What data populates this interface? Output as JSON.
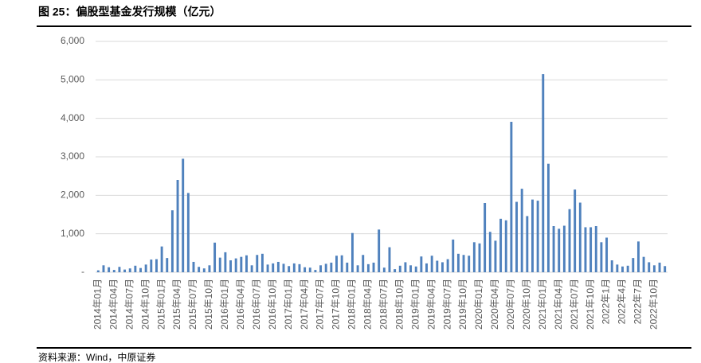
{
  "chart_data": {
    "type": "bar",
    "title": "图 25：偏股型基金发行规模（亿元）",
    "source": "资料来源：Wind，中原证券",
    "color": "#4f81bd",
    "categories": [
      "2014年01月",
      null,
      null,
      "2014年04月",
      null,
      null,
      "2014年07月",
      null,
      null,
      "2014年10月",
      null,
      null,
      "2015年01月",
      null,
      null,
      "2015年04月",
      null,
      null,
      "2015年07月",
      null,
      null,
      "2015年10月",
      null,
      null,
      "2016年01月",
      null,
      null,
      "2016年04月",
      null,
      null,
      "2016年07月",
      null,
      null,
      "2016年10月",
      null,
      null,
      "2017年01月",
      null,
      null,
      "2017年04月",
      null,
      null,
      "2017年07月",
      null,
      null,
      "2017年10月",
      null,
      null,
      "2018年01月",
      null,
      null,
      "2018年04月",
      null,
      null,
      "2018年07月",
      null,
      null,
      "2018年10月",
      null,
      null,
      "2019年01月",
      null,
      null,
      "2019年04月",
      null,
      null,
      "2019年07月",
      null,
      null,
      "2019年10月",
      null,
      null,
      "2020年01月",
      null,
      null,
      "2020年04月",
      null,
      null,
      "2020年07月",
      null,
      null,
      "2020年10月",
      null,
      null,
      "2021年01月",
      null,
      null,
      "2021年04月",
      null,
      null,
      "2021年07月",
      null,
      null,
      "2021年10月",
      null,
      null,
      "2022年1月",
      null,
      null,
      "2022年4月",
      null,
      null,
      "2022年7月",
      null,
      null,
      "2022年10月",
      null,
      null
    ],
    "values": [
      50,
      180,
      130,
      60,
      140,
      70,
      100,
      170,
      110,
      200,
      330,
      340,
      670,
      370,
      1610,
      2400,
      2950,
      2060,
      270,
      140,
      100,
      180,
      770,
      380,
      520,
      310,
      360,
      400,
      440,
      180,
      450,
      480,
      200,
      230,
      270,
      220,
      160,
      230,
      210,
      130,
      120,
      60,
      180,
      220,
      250,
      430,
      440,
      250,
      1020,
      180,
      450,
      210,
      250,
      1110,
      120,
      650,
      80,
      170,
      260,
      180,
      150,
      410,
      230,
      430,
      300,
      260,
      340,
      850,
      480,
      450,
      430,
      780,
      750,
      1800,
      1050,
      820,
      1390,
      1350,
      3910,
      1830,
      2170,
      1460,
      1890,
      1860,
      5150,
      2820,
      1200,
      1130,
      1210,
      1640,
      2150,
      1810,
      1170,
      1170,
      1200,
      780,
      900,
      310,
      200,
      150,
      170,
      370,
      800,
      400,
      260,
      180,
      250,
      160
    ],
    "ylim": [
      0,
      6000
    ],
    "yticks": [
      {
        "value": 0,
        "label": "-"
      },
      {
        "value": 1000,
        "label": "1,000"
      },
      {
        "value": 2000,
        "label": "2,000"
      },
      {
        "value": 3000,
        "label": "3,000"
      },
      {
        "value": 4000,
        "label": "4,000"
      },
      {
        "value": 5000,
        "label": "5,000"
      },
      {
        "value": 6000,
        "label": "6,000"
      }
    ],
    "grid": true
  }
}
